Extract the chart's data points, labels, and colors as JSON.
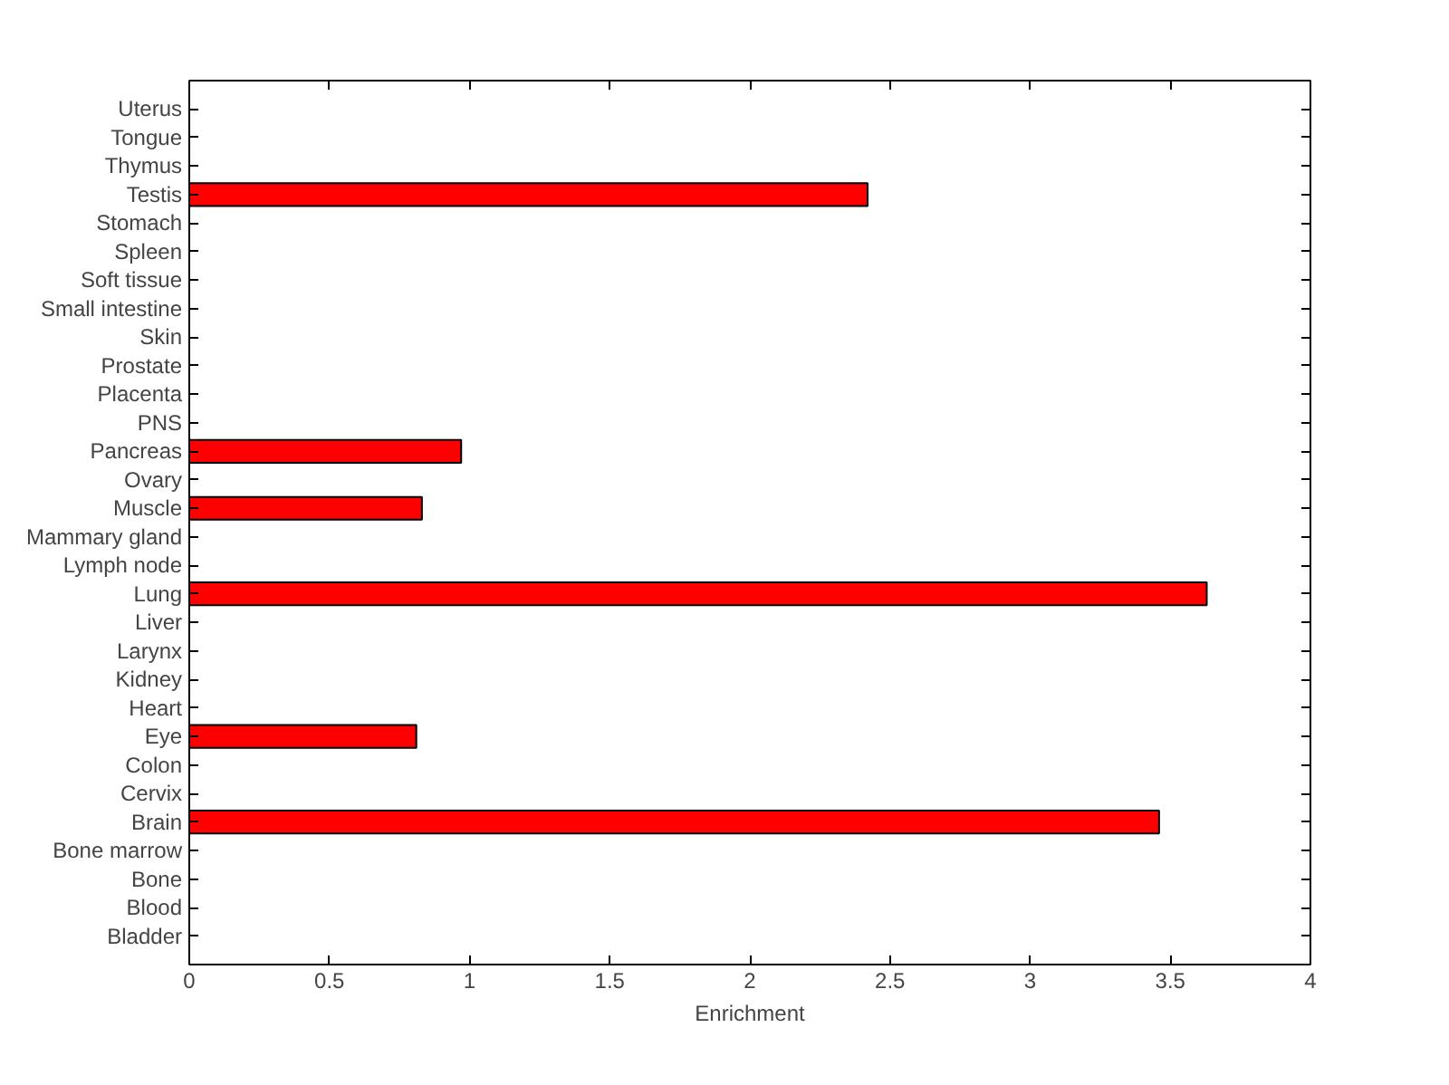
{
  "chart_data": {
    "type": "bar",
    "orientation": "horizontal",
    "categories": [
      "Uterus",
      "Tongue",
      "Thymus",
      "Testis",
      "Stomach",
      "Spleen",
      "Soft tissue",
      "Small intestine",
      "Skin",
      "Prostate",
      "Placenta",
      "PNS",
      "Pancreas",
      "Ovary",
      "Muscle",
      "Mammary gland",
      "Lymph node",
      "Lung",
      "Liver",
      "Larynx",
      "Kidney",
      "Heart",
      "Eye",
      "Colon",
      "Cervix",
      "Brain",
      "Bone marrow",
      "Bone",
      "Blood",
      "Bladder"
    ],
    "values": [
      0,
      0,
      0,
      2.42,
      0,
      0,
      0,
      0,
      0,
      0,
      0,
      0,
      0.97,
      0,
      0.83,
      0,
      0,
      3.63,
      0,
      0,
      0,
      0,
      0.81,
      0,
      0,
      3.46,
      0,
      0,
      0,
      0
    ],
    "color": "#ff0000",
    "xlabel": "Enrichment",
    "xlim": [
      0,
      4
    ],
    "xticks": [
      0,
      0.5,
      1,
      1.5,
      2,
      2.5,
      3,
      3.5,
      4
    ],
    "grid": false
  }
}
